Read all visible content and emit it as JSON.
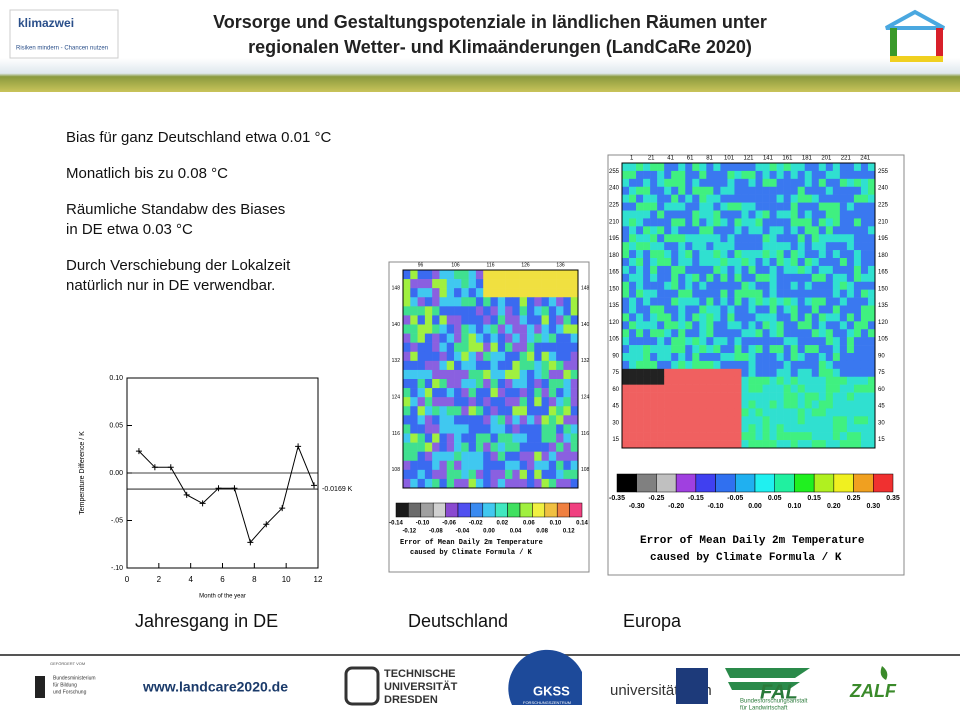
{
  "header": {
    "title_lines": [
      "Vorsorge und Gestaltungspotenziale in ländlichen Räumen unter",
      "regionalen Wetter- und Klimaänderungen (LandCaRe 2020)"
    ],
    "logo_name": "klimazwei",
    "logo_tagline": "Risiken mindern - Chancen nutzen"
  },
  "bullets": [
    [
      "Bias für ganz Deutschland etwa 0.01 °C"
    ],
    [
      "Monatlich bis zu 0.08 °C"
    ],
    [
      "Räumliche Standabw des Biases",
      "in DE etwa 0.03 °C"
    ],
    [
      "Durch Verschiebung der Lokalzeit",
      "natürlich nur in DE verwendbar."
    ]
  ],
  "chart_data": {
    "type": "line",
    "x_label": "Month of the year",
    "y_label": "Temperature Difference / K",
    "x": [
      0.75,
      1.75,
      2.75,
      3.75,
      4.75,
      5.75,
      6.75,
      7.75,
      8.75,
      9.75,
      10.75,
      11.75
    ],
    "series": [
      {
        "name": null,
        "color": "#000000",
        "values": [
          0.023,
          0.006,
          0.006,
          -0.023,
          -0.032,
          -0.016,
          -0.016,
          -0.073,
          -0.054,
          -0.037,
          0.028,
          -0.013
        ]
      }
    ],
    "mean_line": {
      "value": -0.0169,
      "label": "-0.0169 K"
    },
    "xlim": [
      0,
      12
    ],
    "xticks": [
      0,
      2,
      4,
      6,
      8,
      10,
      12
    ],
    "ylim": [
      -0.1,
      0.1
    ],
    "yticks": [
      {
        "value": 0.1,
        "label": "0.10"
      },
      {
        "value": 0.05,
        "label": "0.05"
      },
      {
        "value": 0,
        "label": "0.00"
      },
      {
        "value": -0.05,
        "label": "-.05"
      },
      {
        "value": -0.1,
        "label": "-.10"
      }
    ]
  },
  "maps": [
    {
      "name": "Deutschland",
      "top_ticks": [
        "96",
        "106",
        "116",
        "126",
        "136"
      ],
      "side_ticks": [
        "148",
        "140",
        "132",
        "124",
        "116",
        "108"
      ],
      "colorbar_top": [
        "-0.14",
        "-0.10",
        "-0.06",
        "-0.02",
        "0.02",
        "0.06",
        "0.10",
        "0.14"
      ],
      "colorbar_bottom": [
        "-0.12",
        "-0.08",
        "-0.04",
        "0.00",
        "0.04",
        "0.08",
        "0.12"
      ],
      "caption": [
        "Error of Mean Daily 2m Temperature",
        "caused by Climate Formula / K"
      ]
    },
    {
      "name": "Europa",
      "top_ticks": [
        "1",
        "21",
        "41",
        "61",
        "81",
        "101",
        "121",
        "141",
        "161",
        "181",
        "201",
        "221",
        "241"
      ],
      "side_ticks": [
        "255",
        "240",
        "225",
        "210",
        "195",
        "180",
        "165",
        "150",
        "135",
        "120",
        "105",
        "90",
        "75",
        "60",
        "45",
        "30",
        "15"
      ],
      "colorbar_top": [
        "-0.35",
        "-0.25",
        "-0.15",
        "-0.05",
        "0.05",
        "0.15",
        "0.25",
        "0.35"
      ],
      "colorbar_bottom": [
        "-0.30",
        "-0.20",
        "-0.10",
        "0.00",
        "0.10",
        "0.20",
        "0.30"
      ],
      "caption": [
        "Error of Mean Daily 2m Temperature",
        "caused by Climate Formula / K"
      ]
    }
  ],
  "captions": [
    "Jahresgang in DE",
    "Deutschland",
    "Europa"
  ],
  "footer": {
    "url": "www.landcare2020.de",
    "bmbf": [
      "GEFÖRDERT VOM",
      "Bundesministerium",
      "für Bildung",
      "und Forschung"
    ],
    "tud": [
      "TECHNISCHE",
      "UNIVERSITÄT",
      "DRESDEN"
    ],
    "gkss": [
      "GKSS",
      "FORSCHUNGSZENTRUM"
    ],
    "bonn": "universitätbonn",
    "fal": [
      "FAL",
      "Bundesforschungsanstalt",
      "für Landwirtschaft"
    ],
    "zalf": "ZALF"
  }
}
